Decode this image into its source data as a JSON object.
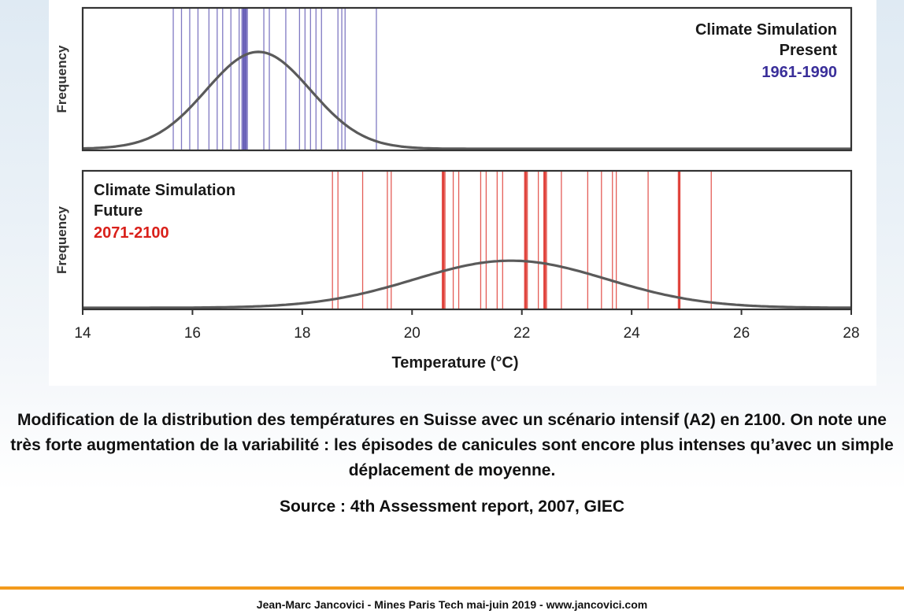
{
  "chart_data": {
    "type": "multi-panel histogram rug with distribution curves",
    "xlabel": "Temperature (°C)",
    "xlim": [
      14,
      28
    ],
    "x_ticks": [
      14,
      16,
      18,
      20,
      22,
      24,
      26,
      28
    ],
    "panels": [
      {
        "label_line1": "Climate Simulation",
        "label_line2": "Present",
        "period": "1961-1990",
        "ylabel": "Frequency",
        "label_position": "top-right",
        "line_color": "#6a62b8",
        "label_color": "#3a2f9a",
        "curve": {
          "mean": 17.2,
          "sd": 0.95
        },
        "years": [
          15.65,
          15.8,
          15.95,
          16.1,
          16.3,
          16.45,
          16.55,
          16.7,
          16.85,
          16.9,
          16.95,
          17.0,
          17.3,
          17.4,
          17.7,
          17.95,
          18.05,
          18.15,
          18.25,
          18.35,
          18.65,
          18.72,
          18.78,
          19.35
        ],
        "bold_years": [
          16.93,
          16.97
        ]
      },
      {
        "label_line1": "Climate Simulation",
        "label_line2": "Future",
        "period": "2071-2100",
        "ylabel": "Frequency",
        "label_position": "top-left",
        "line_color": "#e0413a",
        "label_color": "#d9201a",
        "curve": {
          "mean": 21.8,
          "sd": 1.75
        },
        "years": [
          18.55,
          18.65,
          19.1,
          19.55,
          19.62,
          20.55,
          20.6,
          20.75,
          20.85,
          21.25,
          21.35,
          21.55,
          21.65,
          22.05,
          22.1,
          22.3,
          22.4,
          22.45,
          22.72,
          23.2,
          23.45,
          23.65,
          23.72,
          24.3,
          24.85,
          25.45
        ],
        "bold_years": [
          20.57,
          22.07,
          22.42,
          24.87
        ]
      }
    ]
  },
  "caption": "Modification de la distribution des températures en Suisse avec un scénario intensif (A2) en 2100. On note une très forte augmentation de la variabilité : les épisodes de canicules sont encore plus intenses qu’avec un simple déplacement de moyenne.",
  "source": "Source : 4th Assessment report, 2007, GIEC",
  "footer": "Jean-Marc Jancovici - Mines Paris Tech mai-juin 2019 - www.jancovici.com"
}
